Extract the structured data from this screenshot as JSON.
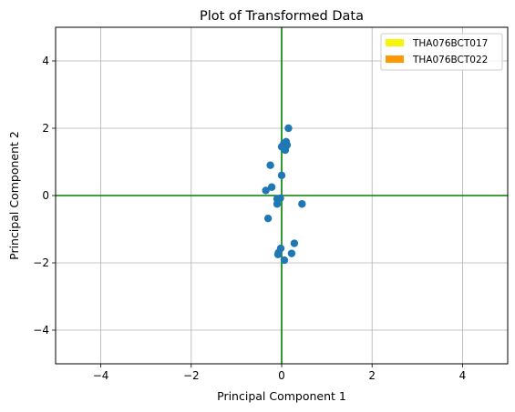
{
  "chart_data": {
    "type": "scatter",
    "title": "Plot of Transformed Data",
    "xlabel": "Principal Component 1",
    "ylabel": "Principal Component 2",
    "xlim": [
      -5,
      5
    ],
    "ylim": [
      -5,
      5
    ],
    "xticks": [
      -4,
      -2,
      0,
      2,
      4
    ],
    "yticks": [
      -4,
      -2,
      0,
      2,
      4
    ],
    "grid": true,
    "legend_position": "top-right",
    "legend": [
      {
        "label": "THA076BCT017",
        "color": "#f5f50a"
      },
      {
        "label": "THA076BCT022",
        "color": "#ff9800"
      }
    ],
    "reference_lines": {
      "x": 0,
      "y": 0,
      "color": "#008000"
    },
    "series": [
      {
        "color": "#1f77b4",
        "points": [
          {
            "x": 0.15,
            "y": 2.0
          },
          {
            "x": 0.1,
            "y": 1.6
          },
          {
            "x": 0.05,
            "y": 1.55
          },
          {
            "x": 0.12,
            "y": 1.5
          },
          {
            "x": 0.0,
            "y": 1.45
          },
          {
            "x": 0.08,
            "y": 1.35
          },
          {
            "x": -0.25,
            "y": 0.9
          },
          {
            "x": 0.0,
            "y": 0.6
          },
          {
            "x": -0.22,
            "y": 0.25
          },
          {
            "x": -0.35,
            "y": 0.15
          },
          {
            "x": -0.1,
            "y": -0.1
          },
          {
            "x": -0.03,
            "y": -0.08
          },
          {
            "x": -0.1,
            "y": -0.25
          },
          {
            "x": 0.45,
            "y": -0.25
          },
          {
            "x": -0.3,
            "y": -0.68
          },
          {
            "x": 0.28,
            "y": -1.42
          },
          {
            "x": -0.02,
            "y": -1.57
          },
          {
            "x": -0.07,
            "y": -1.7
          },
          {
            "x": -0.08,
            "y": -1.75
          },
          {
            "x": 0.22,
            "y": -1.72
          },
          {
            "x": 0.06,
            "y": -1.92
          }
        ]
      }
    ]
  }
}
